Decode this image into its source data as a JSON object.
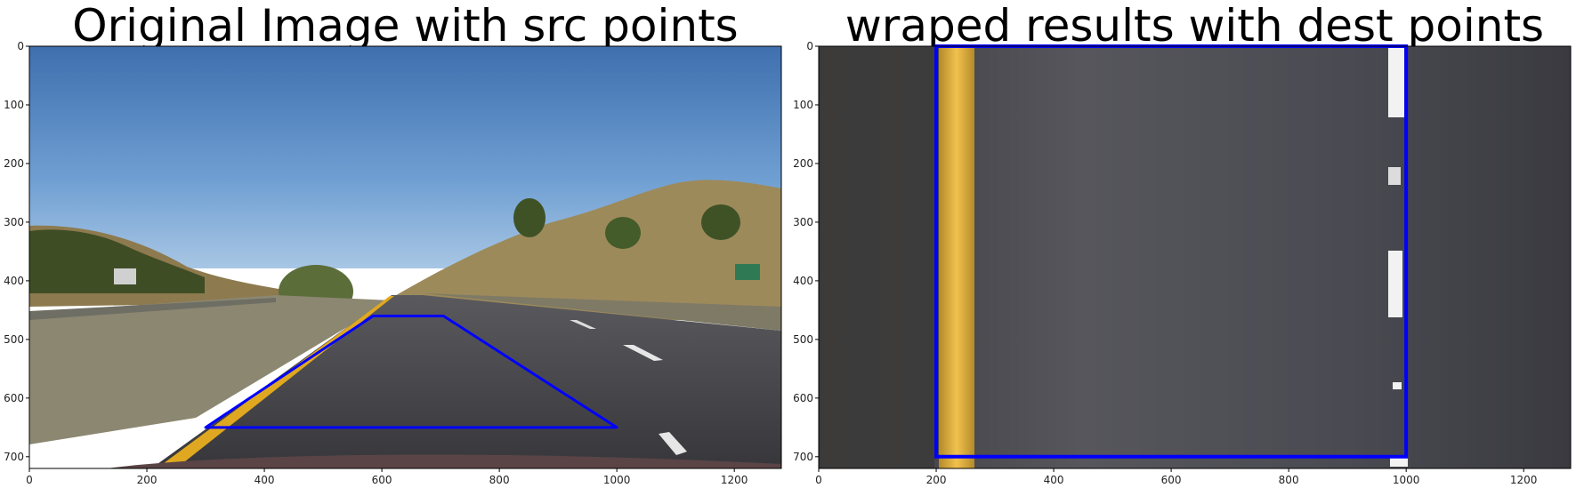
{
  "chart_data": [
    {
      "type": "image",
      "title": "Original Image with src points",
      "xlim": [
        0,
        1280
      ],
      "ylim": [
        720,
        0
      ],
      "xticks": [
        0,
        200,
        400,
        600,
        800,
        1000,
        1200
      ],
      "yticks": [
        0,
        100,
        200,
        300,
        400,
        500,
        600,
        700
      ],
      "overlay": {
        "color": "#0000ff",
        "points": [
          [
            585,
            460
          ],
          [
            705,
            460
          ],
          [
            1000,
            650
          ],
          [
            300,
            650
          ]
        ]
      }
    },
    {
      "type": "image",
      "title": "wraped results with dest points",
      "xlim": [
        0,
        1280
      ],
      "ylim": [
        720,
        0
      ],
      "xticks": [
        0,
        200,
        400,
        600,
        800,
        1000,
        1200
      ],
      "yticks": [
        0,
        100,
        200,
        300,
        400,
        500,
        600,
        700
      ],
      "overlay": {
        "color": "#0000ff",
        "points": [
          [
            200,
            0
          ],
          [
            1000,
            0
          ],
          [
            1000,
            700
          ],
          [
            200,
            700
          ]
        ]
      }
    }
  ]
}
